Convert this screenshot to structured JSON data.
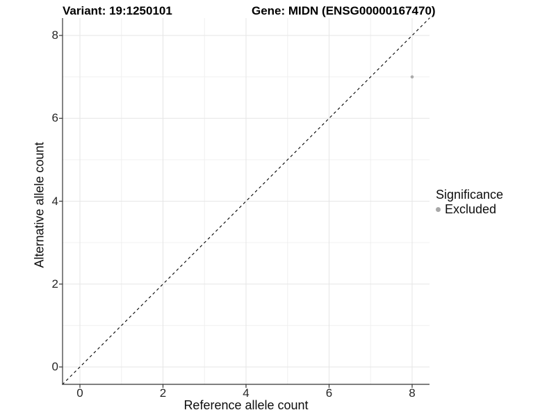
{
  "chart_data": {
    "type": "scatter",
    "titles": {
      "left": "Variant: 19:1250101",
      "right": "Gene: MIDN (ENSG00000167470)"
    },
    "xlabel": "Reference allele count",
    "ylabel": "Alternative allele count",
    "x_ticks": [
      0,
      2,
      4,
      6,
      8
    ],
    "y_ticks": [
      0,
      2,
      4,
      6,
      8
    ],
    "minor_ticks": [
      1,
      3,
      5,
      7
    ],
    "xlim": [
      -0.425,
      8.425
    ],
    "ylim": [
      -0.425,
      8.425
    ],
    "grid": true,
    "legend_position": "right",
    "reference_line": {
      "identity": true,
      "style": "dashed",
      "color": "#000000"
    },
    "series": [
      {
        "name": "Excluded",
        "color": "#aaaaaa",
        "points": [
          {
            "x": 8,
            "y": 7
          }
        ]
      }
    ],
    "legend": {
      "title": "Significance",
      "entries": [
        {
          "label": "Excluded",
          "color": "#a8a8a8",
          "marker": "circle"
        }
      ]
    }
  },
  "colors": {
    "background": "#ffffff",
    "axis_line": "#333333",
    "tick_mark": "#333333",
    "tick_text": "#262626",
    "major_grid": "#e6e6e6",
    "minor_grid": "#f0f0f0"
  }
}
